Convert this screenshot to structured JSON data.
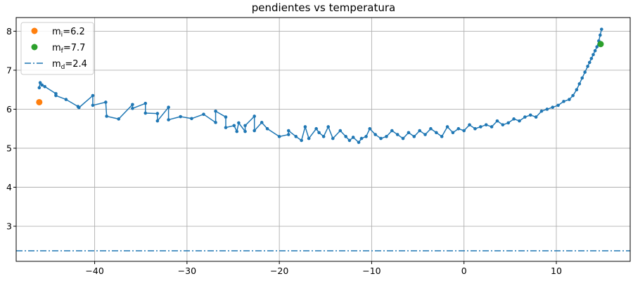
{
  "chart_data": {
    "type": "line",
    "title": "pendientes vs temperatura",
    "xlim": [
      -48.5,
      18
    ],
    "ylim": [
      2.1,
      8.35
    ],
    "grid": true,
    "legend_placement": "top-left",
    "x_ticks": [
      -40,
      -30,
      -20,
      -10,
      0,
      10
    ],
    "y_ticks": [
      3,
      4,
      5,
      6,
      7,
      8
    ],
    "x_tick_labels": [
      "−40",
      "−30",
      "−20",
      "−10",
      "0",
      "10"
    ],
    "y_tick_labels": [
      "3",
      "4",
      "5",
      "6",
      "7",
      "8"
    ],
    "colors": {
      "series": "#1f77b4",
      "initial": "#ff7f0e",
      "final": "#2ca02c",
      "reference": "#1f77b4"
    },
    "series": [
      {
        "x": [
          -46.0,
          -45.9,
          -45.7,
          -45.4,
          -44.2,
          -44.2,
          -43.1,
          -41.8,
          -41.7,
          -40.2,
          -40.2,
          -38.8,
          -38.7,
          -37.4,
          -35.9,
          -35.9,
          -34.5,
          -34.5,
          -33.2,
          -33.2,
          -32.0,
          -32.0,
          -30.7,
          -29.5,
          -28.2,
          -26.9,
          -26.9,
          -25.8,
          -25.8,
          -24.9,
          -24.6,
          -24.4,
          -23.7,
          -23.7,
          -22.7,
          -22.7,
          -21.9,
          -21.3,
          -20.0,
          -19.0,
          -19.0,
          -18.2,
          -17.6,
          -17.2,
          -16.8,
          -16.0,
          -15.7,
          -15.2,
          -14.7,
          -14.2,
          -13.4,
          -12.8,
          -12.4,
          -12.0,
          -11.4,
          -11.1,
          -10.6,
          -10.2,
          -9.6,
          -9.0,
          -8.4,
          -7.8,
          -7.2,
          -6.6,
          -6.0,
          -5.4,
          -4.8,
          -4.2,
          -3.6,
          -3.0,
          -2.4,
          -1.8,
          -1.2,
          -0.6,
          0.0,
          0.6,
          1.2,
          1.8,
          2.4,
          3.0,
          3.6,
          4.2,
          4.8,
          5.4,
          6.0,
          6.6,
          7.2,
          7.8,
          8.4,
          9.0,
          9.6,
          10.2,
          10.8,
          11.4,
          11.8,
          12.2,
          12.5,
          12.8,
          13.1,
          13.4,
          13.6,
          13.8,
          14.0,
          14.2,
          14.4,
          14.6,
          14.75,
          14.9
        ],
        "y": [
          6.55,
          6.68,
          6.62,
          6.58,
          6.4,
          6.35,
          6.25,
          6.07,
          6.04,
          6.35,
          6.1,
          6.18,
          5.82,
          5.75,
          6.12,
          6.02,
          6.15,
          5.9,
          5.89,
          5.7,
          6.05,
          5.73,
          5.81,
          5.76,
          5.87,
          5.66,
          5.95,
          5.8,
          5.53,
          5.58,
          5.43,
          5.65,
          5.43,
          5.58,
          5.82,
          5.45,
          5.66,
          5.5,
          5.3,
          5.35,
          5.45,
          5.3,
          5.2,
          5.55,
          5.25,
          5.5,
          5.4,
          5.3,
          5.55,
          5.25,
          5.45,
          5.3,
          5.2,
          5.28,
          5.15,
          5.25,
          5.3,
          5.5,
          5.35,
          5.25,
          5.3,
          5.45,
          5.35,
          5.25,
          5.4,
          5.3,
          5.45,
          5.35,
          5.5,
          5.4,
          5.3,
          5.55,
          5.4,
          5.5,
          5.45,
          5.6,
          5.5,
          5.55,
          5.6,
          5.55,
          5.7,
          5.6,
          5.65,
          5.75,
          5.7,
          5.8,
          5.85,
          5.8,
          5.95,
          6.0,
          6.05,
          6.1,
          6.2,
          6.25,
          6.35,
          6.5,
          6.65,
          6.8,
          6.95,
          7.1,
          7.2,
          7.3,
          7.4,
          7.5,
          7.6,
          7.75,
          7.9,
          8.05
        ]
      }
    ],
    "initial_point": {
      "x": -46.0,
      "y": 6.18
    },
    "final_point": {
      "x": 14.8,
      "y": 7.67
    },
    "reference_line": {
      "y": 2.37
    },
    "legend": [
      {
        "kind": "marker",
        "color": "#ff7f0e",
        "label": "m",
        "sub": "i",
        "value": "=6.2"
      },
      {
        "kind": "marker",
        "color": "#2ca02c",
        "label": "m",
        "sub": "f",
        "value": "=7.7"
      },
      {
        "kind": "dashdot",
        "color": "#1f77b4",
        "label": "m",
        "sub": "d",
        "value": "=2.4"
      }
    ]
  }
}
